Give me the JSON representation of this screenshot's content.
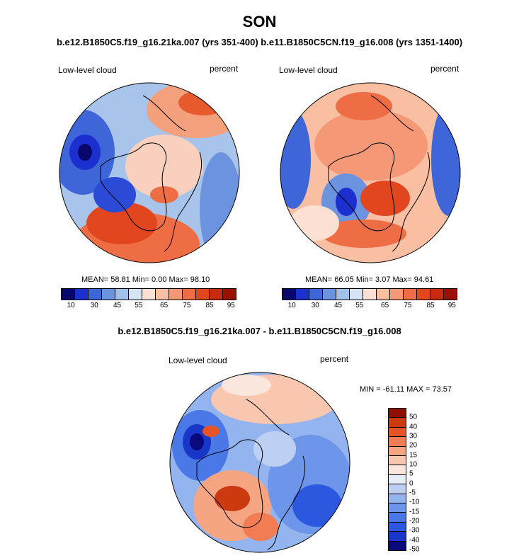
{
  "figure": {
    "season": "SON",
    "run_titles": "b.e12.B1850C5.f19_g16.21ka.007 (yrs 351-400) b.e11.B1850C5CN.f19_g16.008 (yrs 1351-1400)",
    "diff_title": "b.e12.B1850C5.f19_g16.21ka.007 - b.e11.B1850C5CN.f19_g16.008"
  },
  "panels": [
    {
      "variable": "Low-level cloud",
      "units": "percent",
      "stats": "MEAN=  58.81  Min=   0.00  Max=  98.10"
    },
    {
      "variable": "Low-level cloud",
      "units": "percent",
      "stats": "MEAN=  66.05  Min=   3.07  Max=  94.61"
    }
  ],
  "diff_panel": {
    "variable": "Low-level cloud",
    "units": "percent",
    "stats": "MIN = -61.11 MAX =  73.57"
  },
  "colorbar_main": {
    "colors": [
      "#08076b",
      "#1c2fcf",
      "#3f66d9",
      "#6c93df",
      "#a3c0ea",
      "#d6e3f4",
      "#fbe0d3",
      "#f8bfa3",
      "#f59876",
      "#ef6d45",
      "#e2461f",
      "#c92a10",
      "#9c0f03"
    ],
    "tick_labels": [
      "10",
      "30",
      "45",
      "55",
      "65",
      "75",
      "85",
      "95"
    ]
  },
  "colorbar_diff": {
    "colors": [
      "#0a0a7c",
      "#1836c8",
      "#2c58e0",
      "#4a78e6",
      "#6d95ea",
      "#94b4ef",
      "#bdd0f4",
      "#e6eefa",
      "#fbe6dd",
      "#f9c7b0",
      "#f6a582",
      "#f27d54",
      "#e95426",
      "#cc3a10",
      "#8e0e00"
    ],
    "tick_labels": [
      "50",
      "40",
      "30",
      "20",
      "15",
      "10",
      "5",
      "0",
      "-5",
      "-10",
      "-15",
      "-20",
      "-30",
      "-40",
      "-50"
    ]
  }
}
